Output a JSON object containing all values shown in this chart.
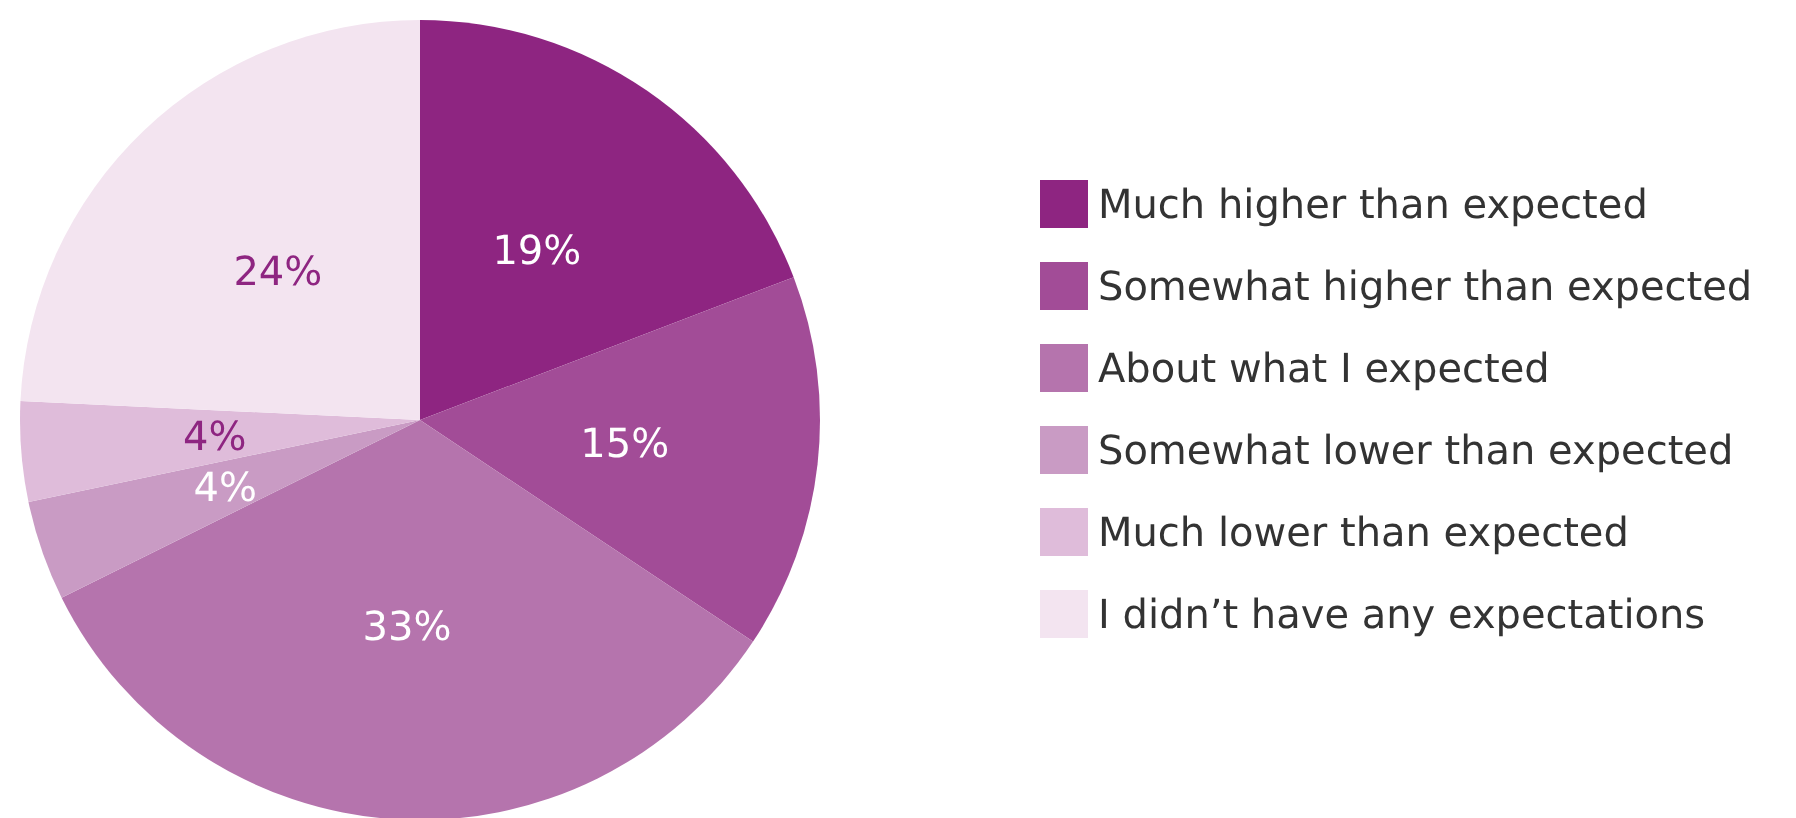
{
  "chart_data": {
    "type": "pie",
    "categories": [
      "Much higher than expected",
      "Somewhat higher than expected",
      "About what I expected",
      "Somewhat lower than expected",
      "Much lower than expected",
      "I didn’t have any expectations"
    ],
    "values": [
      19,
      15,
      33,
      4,
      4,
      24
    ],
    "value_labels": [
      "19%",
      "15%",
      "33%",
      "4%",
      "4%",
      "24%"
    ],
    "colors": [
      "#8e2581",
      "#a24c97",
      "#b574ad",
      "#c99bc4",
      "#dfbcda",
      "#f3e4f0"
    ],
    "legend": "right"
  }
}
